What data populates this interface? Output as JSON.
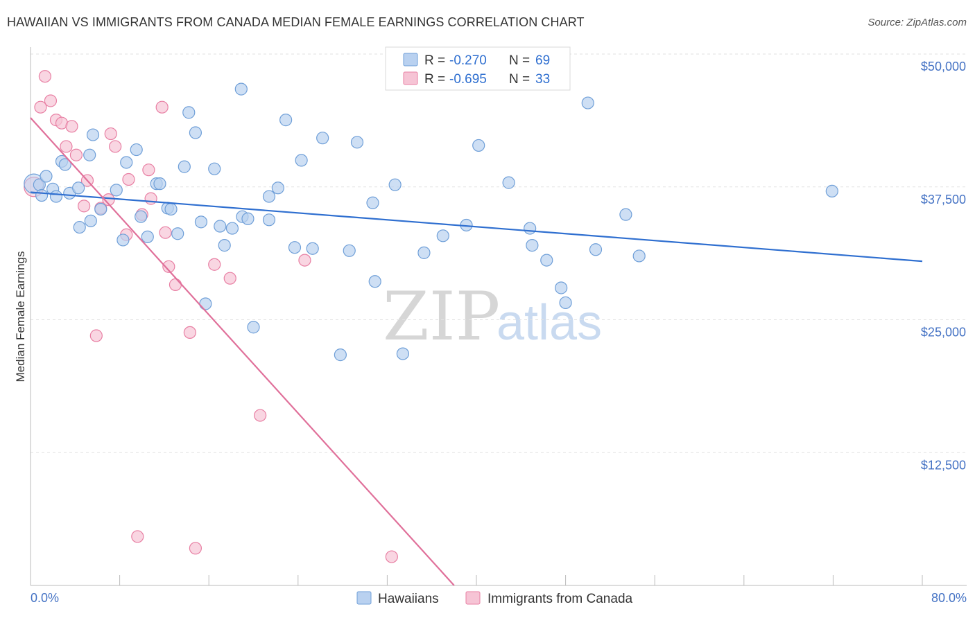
{
  "title": "HAWAIIAN VS IMMIGRANTS FROM CANADA MEDIAN FEMALE EARNINGS CORRELATION CHART",
  "source": "Source: ZipAtlas.com",
  "watermark": {
    "part1": "ZIP",
    "part2": "atlas"
  },
  "colors": {
    "blue": "#6f9fd8",
    "blue_fill": "#b9d1f0",
    "pink": "#e87fa3",
    "pink_fill": "#f6c4d5",
    "blue_line": "#2f6fd0",
    "pink_line": "#e0709a"
  },
  "legend": {
    "rows": [
      {
        "r_label": "R = ",
        "r_value": "-0.270",
        "n_label": "N = ",
        "n_value": "69"
      },
      {
        "r_label": "R = ",
        "r_value": "-0.695",
        "n_label": "N = ",
        "n_value": "33"
      }
    ]
  },
  "chart_data": {
    "type": "scatter",
    "title": "HAWAIIAN VS IMMIGRANTS FROM CANADA MEDIAN FEMALE EARNINGS CORRELATION CHART",
    "xlabel": "",
    "ylabel": "Median Female Earnings",
    "xlim": [
      0,
      80
    ],
    "ylim": [
      0,
      50000
    ],
    "x_tick_labels": [
      "0.0%",
      "80.0%"
    ],
    "y_ticks": [
      12500,
      25000,
      37500,
      50000
    ],
    "y_tick_labels": [
      "$12,500",
      "$25,000",
      "$37,500",
      "$50,000"
    ],
    "series": [
      {
        "name": "Hawaiians",
        "color": "#6f9fd8",
        "trend": {
          "x": [
            0,
            80
          ],
          "y": [
            37000,
            30500
          ]
        },
        "points": [
          [
            0.3,
            37800
          ],
          [
            0.8,
            37700
          ],
          [
            1.4,
            38500
          ],
          [
            2.0,
            37300
          ],
          [
            1.0,
            36700
          ],
          [
            2.3,
            36600
          ],
          [
            2.8,
            39900
          ],
          [
            3.1,
            39600
          ],
          [
            3.5,
            36900
          ],
          [
            4.3,
            37400
          ],
          [
            5.3,
            40500
          ],
          [
            5.6,
            42400
          ],
          [
            4.4,
            33700
          ],
          [
            5.4,
            34300
          ],
          [
            6.3,
            35400
          ],
          [
            7.7,
            37200
          ],
          [
            8.6,
            39800
          ],
          [
            8.3,
            32500
          ],
          [
            9.5,
            41000
          ],
          [
            9.9,
            34700
          ],
          [
            10.5,
            32800
          ],
          [
            11.3,
            37800
          ],
          [
            11.6,
            37800
          ],
          [
            12.3,
            35500
          ],
          [
            12.6,
            35400
          ],
          [
            13.2,
            33100
          ],
          [
            13.8,
            39400
          ],
          [
            14.2,
            44500
          ],
          [
            14.8,
            42600
          ],
          [
            15.3,
            34200
          ],
          [
            15.7,
            26500
          ],
          [
            16.5,
            39200
          ],
          [
            17.0,
            33800
          ],
          [
            17.4,
            32000
          ],
          [
            18.1,
            33600
          ],
          [
            18.9,
            46700
          ],
          [
            19.0,
            34700
          ],
          [
            19.5,
            34500
          ],
          [
            20.0,
            24300
          ],
          [
            21.4,
            34400
          ],
          [
            21.4,
            36600
          ],
          [
            22.2,
            37400
          ],
          [
            22.9,
            43800
          ],
          [
            23.7,
            31800
          ],
          [
            24.3,
            40000
          ],
          [
            25.3,
            31700
          ],
          [
            26.2,
            42100
          ],
          [
            27.8,
            21700
          ],
          [
            28.6,
            31500
          ],
          [
            29.3,
            41700
          ],
          [
            30.7,
            36000
          ],
          [
            30.9,
            28600
          ],
          [
            32.7,
            37700
          ],
          [
            33.4,
            21800
          ],
          [
            35.3,
            31300
          ],
          [
            37.0,
            32900
          ],
          [
            39.1,
            33900
          ],
          [
            40.2,
            41400
          ],
          [
            42.9,
            37900
          ],
          [
            44.8,
            33600
          ],
          [
            45.0,
            32000
          ],
          [
            46.3,
            30600
          ],
          [
            47.6,
            28000
          ],
          [
            48.0,
            26600
          ],
          [
            50.0,
            45400
          ],
          [
            50.7,
            31600
          ],
          [
            53.4,
            34900
          ],
          [
            54.6,
            31000
          ],
          [
            71.9,
            37100
          ]
        ]
      },
      {
        "name": "Immigrants from Canada",
        "color": "#e87fa3",
        "trend": {
          "x": [
            0,
            38
          ],
          "y": [
            44000,
            0
          ]
        },
        "points": [
          [
            0.3,
            37500
          ],
          [
            0.9,
            45000
          ],
          [
            1.3,
            47900
          ],
          [
            1.8,
            45600
          ],
          [
            2.3,
            43800
          ],
          [
            2.8,
            43500
          ],
          [
            3.2,
            41300
          ],
          [
            3.7,
            43200
          ],
          [
            4.1,
            40500
          ],
          [
            4.8,
            35700
          ],
          [
            5.1,
            38100
          ],
          [
            6.3,
            35500
          ],
          [
            5.9,
            23500
          ],
          [
            7.0,
            36300
          ],
          [
            7.2,
            42500
          ],
          [
            7.6,
            41300
          ],
          [
            8.6,
            33000
          ],
          [
            8.8,
            38200
          ],
          [
            9.6,
            4600
          ],
          [
            10.0,
            34900
          ],
          [
            10.6,
            39100
          ],
          [
            10.8,
            36400
          ],
          [
            11.8,
            45000
          ],
          [
            12.1,
            33200
          ],
          [
            12.4,
            30000
          ],
          [
            13.0,
            28300
          ],
          [
            14.3,
            23800
          ],
          [
            14.8,
            3500
          ],
          [
            16.5,
            30200
          ],
          [
            17.9,
            28900
          ],
          [
            20.6,
            16000
          ],
          [
            24.6,
            30600
          ],
          [
            32.4,
            2700
          ]
        ]
      }
    ]
  },
  "bottom_legend": {
    "items": [
      "Hawaiians",
      "Immigrants from Canada"
    ]
  }
}
